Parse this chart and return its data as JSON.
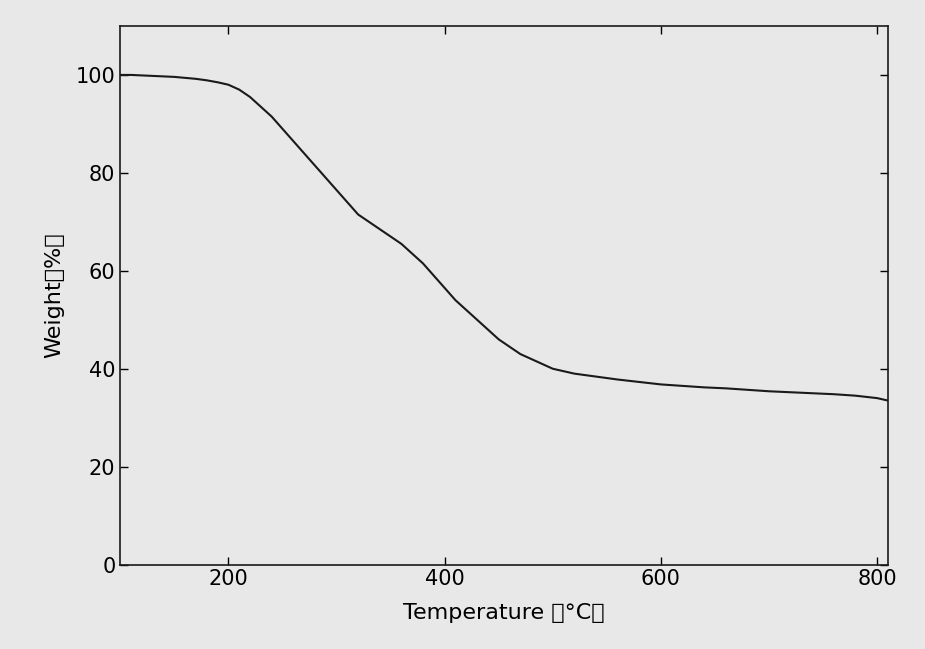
{
  "xlabel": "Temperature （°C）",
  "ylabel": "Weight（%）",
  "xlim": [
    100,
    810
  ],
  "ylim": [
    0,
    110
  ],
  "xticks": [
    200,
    400,
    600,
    800
  ],
  "yticks": [
    0,
    20,
    40,
    60,
    80,
    100
  ],
  "line_color": "#1a1a1a",
  "line_width": 1.5,
  "background_color": "#e8e8e8",
  "axes_background": "#e8e8e8",
  "xlabel_fontsize": 16,
  "ylabel_fontsize": 16,
  "tick_fontsize": 15,
  "curve_x": [
    100,
    110,
    120,
    130,
    140,
    150,
    160,
    170,
    180,
    190,
    200,
    210,
    220,
    230,
    240,
    250,
    260,
    270,
    280,
    290,
    300,
    310,
    320,
    330,
    340,
    350,
    360,
    370,
    380,
    390,
    400,
    410,
    420,
    430,
    440,
    450,
    460,
    470,
    480,
    490,
    500,
    510,
    520,
    530,
    540,
    560,
    580,
    600,
    620,
    640,
    660,
    680,
    700,
    720,
    740,
    760,
    780,
    800,
    810
  ],
  "curve_y": [
    100.0,
    100.0,
    99.9,
    99.8,
    99.7,
    99.6,
    99.4,
    99.2,
    98.9,
    98.5,
    98.0,
    97.0,
    95.5,
    93.5,
    91.5,
    89.0,
    86.5,
    84.0,
    81.5,
    79.0,
    76.5,
    74.0,
    71.5,
    70.0,
    68.5,
    67.0,
    65.5,
    63.5,
    61.5,
    59.0,
    56.5,
    54.0,
    52.0,
    50.0,
    48.0,
    46.0,
    44.5,
    43.0,
    42.0,
    41.0,
    40.0,
    39.5,
    39.0,
    38.7,
    38.4,
    37.8,
    37.3,
    36.8,
    36.5,
    36.2,
    36.0,
    35.7,
    35.4,
    35.2,
    35.0,
    34.8,
    34.5,
    34.0,
    33.5
  ]
}
